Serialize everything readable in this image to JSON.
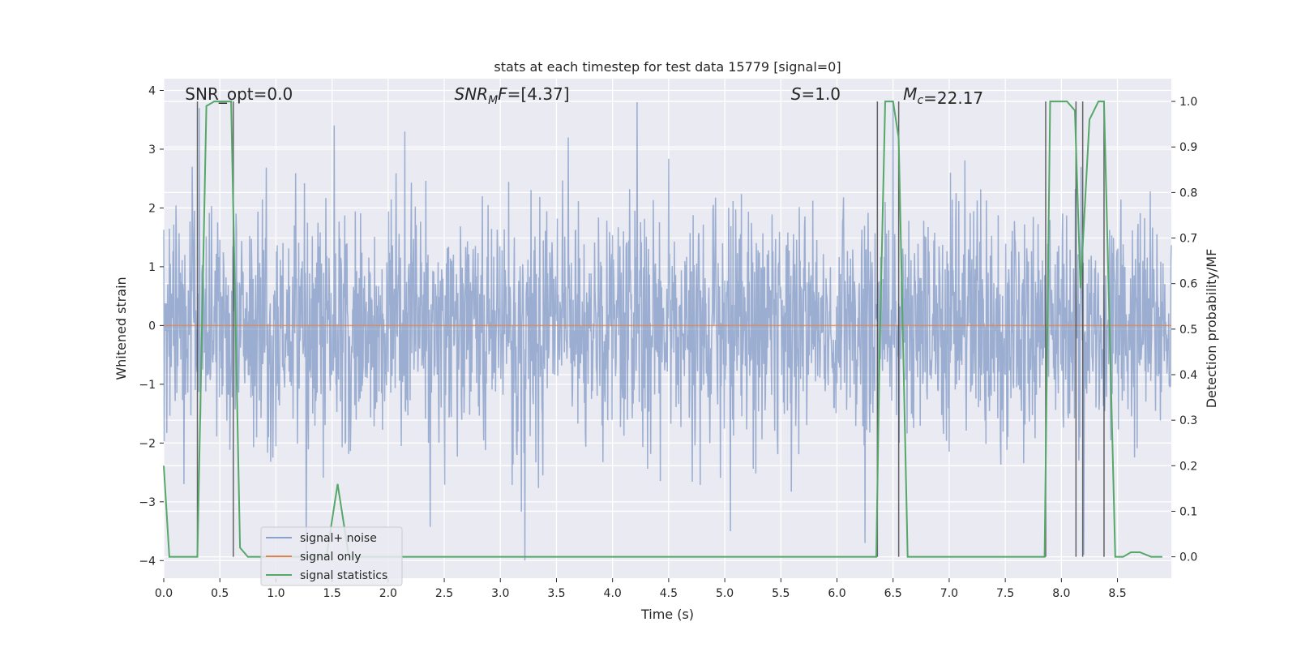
{
  "chart_data": {
    "type": "line",
    "title": "stats at each timestep for test data 15779 [signal=0]",
    "xlabel": "Time (s)",
    "ylabel": "Whitened strain",
    "y2label": "Detection probability/MF",
    "xlim": [
      0.0,
      8.98
    ],
    "ylim": [
      -4.3,
      4.2
    ],
    "y2lim": [
      -0.047,
      1.05
    ],
    "xticks": [
      0.0,
      0.5,
      1.0,
      1.5,
      2.0,
      2.5,
      3.0,
      3.5,
      4.0,
      4.5,
      5.0,
      5.5,
      6.0,
      6.5,
      7.0,
      7.5,
      8.0,
      8.5
    ],
    "xtick_labels": [
      "0.0",
      "0.5",
      "1.0",
      "1.5",
      "2.0",
      "2.5",
      "3.0",
      "3.5",
      "4.0",
      "4.5",
      "5.0",
      "5.5",
      "6.0",
      "6.5",
      "7.0",
      "7.5",
      "8.0",
      "8.5"
    ],
    "yticks": [
      -4,
      -3,
      -2,
      -1,
      0,
      1,
      2,
      3,
      4
    ],
    "ytick_labels": [
      "−4",
      "−3",
      "−2",
      "−1",
      "0",
      "1",
      "2",
      "3",
      "4"
    ],
    "y2ticks": [
      0.0,
      0.1,
      0.2,
      0.3,
      0.4,
      0.5,
      0.6,
      0.7,
      0.8,
      0.9,
      1.0
    ],
    "y2tick_labels": [
      "0.0",
      "0.1",
      "0.2",
      "0.3",
      "0.4",
      "0.5",
      "0.6",
      "0.7",
      "0.8",
      "0.9",
      "1.0"
    ],
    "grid": true,
    "legend_position": "lower-left",
    "annotations": [
      {
        "text": "SNR_opt=0.0",
        "x": 0.19
      },
      {
        "text": "SNR_MF=[4.37]",
        "x": 2.59
      },
      {
        "text": "S=1.0",
        "x": 5.59
      },
      {
        "text": "M_c=22.17",
        "x": 6.59
      }
    ],
    "series": [
      {
        "name": "signal+ noise",
        "color": "#4c72b0",
        "kind": "noise",
        "amplitude_std": 1.0,
        "peaks": [
          [
            2.15,
            3.3
          ],
          [
            4.22,
            3.8
          ],
          [
            1.27,
            -4.0
          ],
          [
            3.22,
            -4.0
          ],
          [
            6.25,
            -3.7
          ],
          [
            8.2,
            -3.9
          ],
          [
            5.05,
            -3.5
          ],
          [
            6.5,
            3.8
          ]
        ]
      },
      {
        "name": "signal only",
        "color": "#dd8452",
        "x": [
          0.0,
          8.98
        ],
        "y": [
          0.0,
          0.0
        ]
      },
      {
        "name": "signal statistics",
        "color": "#55a868",
        "axis": "right",
        "x": [
          0.0,
          0.05,
          0.3,
          0.38,
          0.45,
          0.6,
          0.68,
          0.75,
          1.45,
          1.55,
          1.65,
          6.35,
          6.38,
          6.43,
          6.5,
          6.55,
          6.63,
          6.7,
          7.85,
          7.9,
          8.05,
          8.12,
          8.17,
          8.25,
          8.33,
          8.38,
          8.48,
          8.55,
          8.62,
          8.7,
          8.8,
          8.9
        ],
        "y": [
          0.2,
          0.0,
          0.0,
          0.99,
          1.0,
          1.0,
          0.02,
          0.0,
          0.0,
          0.16,
          0.0,
          0.0,
          0.45,
          1.0,
          1.0,
          0.92,
          0.0,
          0.0,
          0.0,
          1.0,
          1.0,
          0.98,
          0.59,
          0.96,
          1.0,
          1.0,
          0.0,
          0.0,
          0.01,
          0.01,
          0.0,
          0.0
        ]
      }
    ],
    "vertical_markers": [
      0.3,
      0.62,
      6.36,
      6.55,
      7.86,
      8.13,
      8.19,
      8.38
    ]
  }
}
